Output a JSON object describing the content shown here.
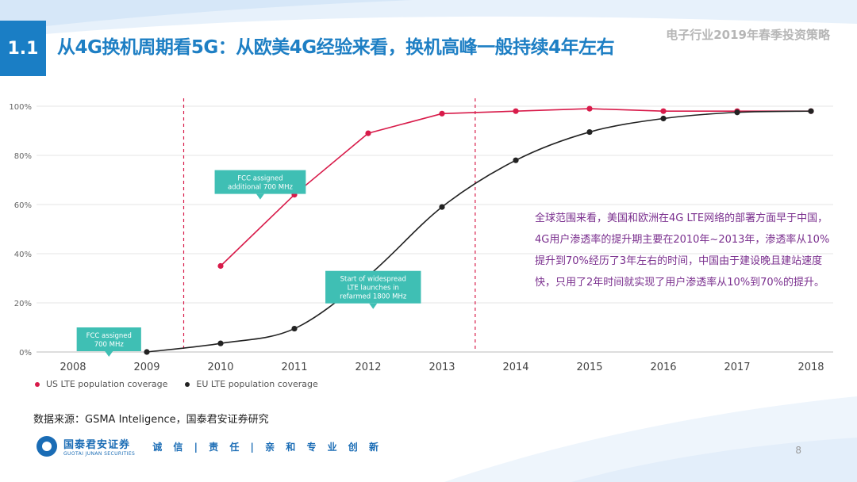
{
  "header": {
    "section_number": "1.1",
    "title": "从4G换机周期看5G：从欧美4G经验来看，换机高峰一般持续4年左右",
    "report_name": "电子行业2019年春季投资策略"
  },
  "note": "全球范围来看，美国和欧洲在4G LTE网络的部署方面早于中国，4G用户渗透率的提升期主要在2010年~2013年，渗透率从10%提升到70%经历了3年左右的时间，中国由于建设晚且建站速度快，只用了2年时间就实现了用户渗透率从10%到70%的提升。",
  "source": "数据来源：GSMA Inteligence，国泰君安证券研究",
  "footer": {
    "logo_cn": "国泰君安证券",
    "logo_en": "GUOTAI JUNAN SECURITIES",
    "slogan": "诚 信 | 责 任 | 亲 和   专 业   创 新",
    "page_number": "8"
  },
  "colors": {
    "us": "#d81b4a",
    "eu": "#222222",
    "callout": "#3fbfb4",
    "accent": "#1a7ec5"
  },
  "chart_data": {
    "type": "line",
    "x": [
      2008,
      2009,
      2010,
      2011,
      2012,
      2013,
      2014,
      2015,
      2016,
      2017,
      2018
    ],
    "x_tick_labels": [
      "2008",
      "2009",
      "2010",
      "2011",
      "2012",
      "2013",
      "2014",
      "2015",
      "2016",
      "2017",
      "2018"
    ],
    "y_tick_labels": [
      "0%",
      "20%",
      "40%",
      "60%",
      "80%",
      "100%"
    ],
    "ylim": [
      0,
      100
    ],
    "grid": true,
    "legend_position": "bottom-left",
    "series": [
      {
        "name": "US LTE population coverage",
        "color": "#d81b4a",
        "points": [
          [
            2010,
            35
          ],
          [
            2011,
            64
          ],
          [
            2012,
            89
          ],
          [
            2013,
            97
          ],
          [
            2014,
            98
          ],
          [
            2015,
            99
          ],
          [
            2016,
            98
          ],
          [
            2017,
            98
          ],
          [
            2018,
            98
          ]
        ]
      },
      {
        "name": "EU LTE population coverage",
        "color": "#222222",
        "points": [
          [
            2009,
            0
          ],
          [
            2010,
            3.5
          ],
          [
            2011,
            9.5
          ],
          [
            2012,
            31
          ],
          [
            2013,
            59
          ],
          [
            2014,
            78
          ],
          [
            2015,
            89.5
          ],
          [
            2016,
            95
          ],
          [
            2017,
            97.5
          ],
          [
            2018,
            98
          ]
        ]
      }
    ],
    "reference_lines_x": [
      2009.5,
      2013.45
    ],
    "annotations": [
      {
        "text_lines": [
          "FCC assigned",
          "700 MHz"
        ],
        "x": 2008.05,
        "y": 10
      },
      {
        "text_lines": [
          "FCC assigned",
          "additional 700 MHz"
        ],
        "x": 2009.92,
        "y": 74
      },
      {
        "text_lines": [
          "Start of widespread",
          "LTE launches in",
          "refarmed 1800 MHz"
        ],
        "x": 2011.42,
        "y": 33
      }
    ]
  }
}
